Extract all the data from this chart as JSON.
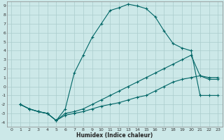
{
  "xlabel": "Humidex (Indice chaleur)",
  "bg_color": "#cce8e8",
  "grid_color": "#aacccc",
  "line_color": "#006666",
  "xlim": [
    -0.5,
    23.5
  ],
  "ylim": [
    -4.5,
    9.5
  ],
  "xticks": [
    0,
    1,
    2,
    3,
    4,
    5,
    6,
    7,
    8,
    9,
    10,
    11,
    12,
    13,
    14,
    15,
    16,
    17,
    18,
    19,
    20,
    21,
    22,
    23
  ],
  "yticks": [
    -4,
    -3,
    -2,
    -1,
    0,
    1,
    2,
    3,
    4,
    5,
    6,
    7,
    8,
    9
  ],
  "line1_x": [
    1,
    2,
    3,
    4,
    5,
    6,
    7,
    8,
    9,
    10,
    11,
    12,
    13,
    14,
    15,
    16,
    17,
    18,
    19,
    20,
    21,
    22,
    23
  ],
  "line1_y": [
    -2,
    -2.5,
    -2.8,
    -3,
    -3.8,
    -2.5,
    1.5,
    3.5,
    5.5,
    7.0,
    8.5,
    8.8,
    9.2,
    9.0,
    8.7,
    7.8,
    6.2,
    4.8,
    4.3,
    4.0,
    -1.0,
    -1.0,
    -1.0
  ],
  "line2_x": [
    1,
    2,
    3,
    4,
    5,
    6,
    7,
    8,
    9,
    10,
    11,
    12,
    13,
    14,
    15,
    16,
    17,
    18,
    19,
    20,
    21,
    22,
    23
  ],
  "line2_y": [
    -2,
    -2.5,
    -2.8,
    -3,
    -3.8,
    -3.0,
    -2.8,
    -2.5,
    -2.0,
    -1.5,
    -1.0,
    -0.5,
    0.0,
    0.5,
    1.0,
    1.5,
    2.0,
    2.5,
    3.0,
    3.5,
    1.2,
    1.0,
    1.0
  ],
  "line3_x": [
    1,
    2,
    3,
    4,
    5,
    6,
    7,
    8,
    9,
    10,
    11,
    12,
    13,
    14,
    15,
    16,
    17,
    18,
    19,
    20,
    21,
    22,
    23
  ],
  "line3_y": [
    -2,
    -2.5,
    -2.8,
    -3,
    -3.8,
    -3.2,
    -3.0,
    -2.8,
    -2.5,
    -2.2,
    -2.0,
    -1.8,
    -1.5,
    -1.2,
    -1.0,
    -0.5,
    0.0,
    0.5,
    0.8,
    1.0,
    1.2,
    0.8,
    0.8
  ]
}
